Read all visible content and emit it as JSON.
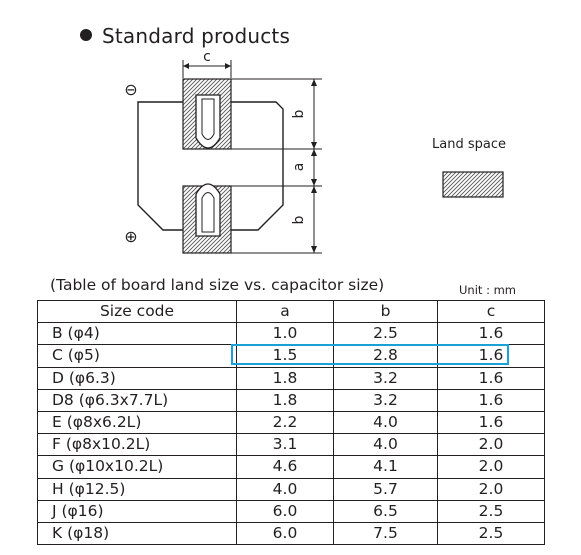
{
  "title": "Standard products",
  "diagram": {
    "dim_c": "c",
    "dim_a": "a",
    "dim_b_top": "b",
    "dim_b_bottom": "b",
    "minus_sign": "⊖",
    "plus_sign": "⊕"
  },
  "land_space_label": "Land space",
  "table_caption": "(Table of board land size vs. capacitor size)",
  "unit": "Unit : mm",
  "table": {
    "headers": [
      "Size code",
      "a",
      "b",
      "c"
    ],
    "rows": [
      [
        "B (φ4)",
        "1.0",
        "2.5",
        "1.6"
      ],
      [
        "C (φ5)",
        "1.5",
        "2.8",
        "1.6"
      ],
      [
        "D (φ6.3)",
        "1.8",
        "3.2",
        "1.6"
      ],
      [
        "D8 (φ6.3x7.7L)",
        "1.8",
        "3.2",
        "1.6"
      ],
      [
        "E (φ8x6.2L)",
        "2.2",
        "4.0",
        "1.6"
      ],
      [
        "F (φ8x10.2L)",
        "3.1",
        "4.0",
        "2.0"
      ],
      [
        "G (φ10x10.2L)",
        "4.6",
        "4.1",
        "2.0"
      ],
      [
        "H (φ12.5)",
        "4.0",
        "5.7",
        "2.0"
      ],
      [
        "J (φ16)",
        "6.0",
        "6.5",
        "2.5"
      ],
      [
        "K (φ18)",
        "6.0",
        "7.5",
        "2.5"
      ]
    ]
  },
  "highlight_color": "#1aa1d9"
}
